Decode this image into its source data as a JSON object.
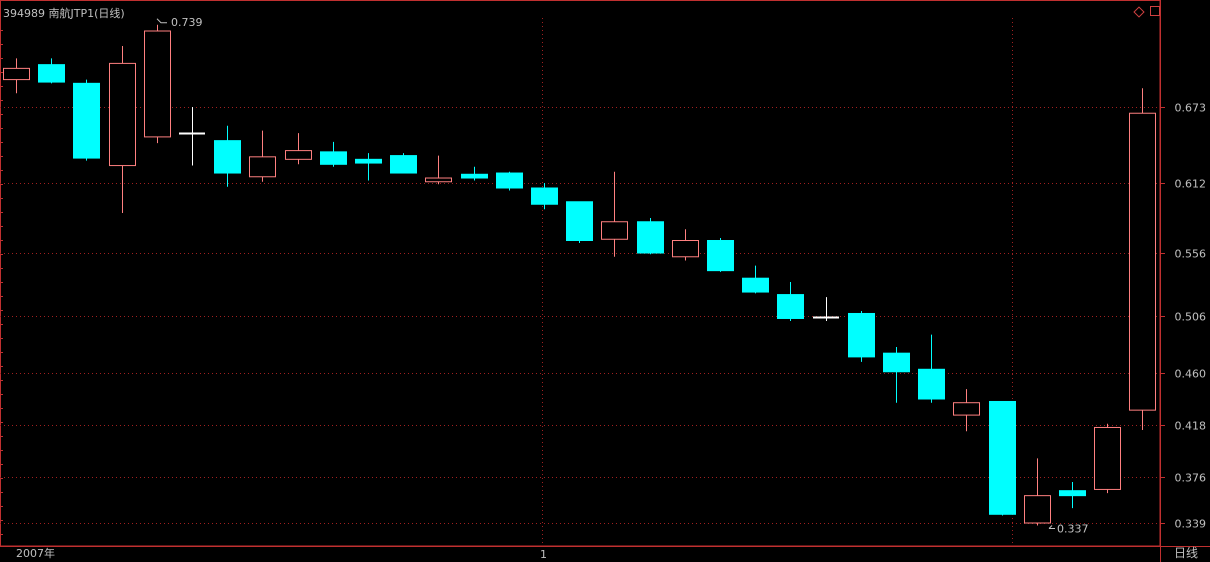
{
  "header": {
    "title": "394989 南航JTP1(日线)"
  },
  "footer": {
    "year_label": "2007年",
    "month_label": "1",
    "period_label": "日线"
  },
  "colors": {
    "background": "#000000",
    "up": "#ff8080",
    "down": "#00ffff",
    "doji": "#ffffff",
    "grid": "#a02020",
    "axis_text": "#c0c0c0",
    "frame": "#c03030"
  },
  "chart_data": {
    "type": "candlestick",
    "y_axis_ticks": [
      "0.673",
      "0.612",
      "0.556",
      "0.506",
      "0.460",
      "0.418",
      "0.376",
      "0.339"
    ],
    "ylim": [
      0.325,
      0.8
    ],
    "grid": true,
    "annotations": {
      "high_label": "0.739",
      "low_label": "0.337"
    },
    "candles": [
      {
        "open": 0.695,
        "high": 0.712,
        "low": 0.684,
        "close": 0.704
      },
      {
        "open": 0.707,
        "high": 0.712,
        "low": 0.692,
        "close": 0.693
      },
      {
        "open": 0.692,
        "high": 0.695,
        "low": 0.63,
        "close": 0.632
      },
      {
        "open": 0.626,
        "high": 0.722,
        "low": 0.588,
        "close": 0.708
      },
      {
        "open": 0.649,
        "high": 0.739,
        "low": 0.644,
        "close": 0.734
      },
      {
        "open": 0.651,
        "high": 0.673,
        "low": 0.626,
        "close": 0.652
      },
      {
        "open": 0.646,
        "high": 0.658,
        "low": 0.609,
        "close": 0.62
      },
      {
        "open": 0.617,
        "high": 0.654,
        "low": 0.613,
        "close": 0.633
      },
      {
        "open": 0.631,
        "high": 0.652,
        "low": 0.627,
        "close": 0.638
      },
      {
        "open": 0.637,
        "high": 0.645,
        "low": 0.625,
        "close": 0.627
      },
      {
        "open": 0.631,
        "high": 0.636,
        "low": 0.614,
        "close": 0.628
      },
      {
        "open": 0.634,
        "high": 0.636,
        "low": 0.62,
        "close": 0.62
      },
      {
        "open": 0.613,
        "high": 0.634,
        "low": 0.611,
        "close": 0.616
      },
      {
        "open": 0.619,
        "high": 0.625,
        "low": 0.614,
        "close": 0.616
      },
      {
        "open": 0.62,
        "high": 0.621,
        "low": 0.606,
        "close": 0.608
      },
      {
        "open": 0.608,
        "high": 0.612,
        "low": 0.591,
        "close": 0.595
      },
      {
        "open": 0.597,
        "high": 0.597,
        "low": 0.564,
        "close": 0.566
      },
      {
        "open": 0.567,
        "high": 0.621,
        "low": 0.553,
        "close": 0.581
      },
      {
        "open": 0.581,
        "high": 0.584,
        "low": 0.555,
        "close": 0.556
      },
      {
        "open": 0.553,
        "high": 0.575,
        "low": 0.55,
        "close": 0.566
      },
      {
        "open": 0.566,
        "high": 0.568,
        "low": 0.541,
        "close": 0.542
      },
      {
        "open": 0.536,
        "high": 0.546,
        "low": 0.524,
        "close": 0.525
      },
      {
        "open": 0.523,
        "high": 0.533,
        "low": 0.502,
        "close": 0.504
      },
      {
        "open": 0.505,
        "high": 0.521,
        "low": 0.502,
        "close": 0.505
      },
      {
        "open": 0.508,
        "high": 0.51,
        "low": 0.469,
        "close": 0.473
      },
      {
        "open": 0.476,
        "high": 0.481,
        "low": 0.436,
        "close": 0.461
      },
      {
        "open": 0.463,
        "high": 0.491,
        "low": 0.436,
        "close": 0.439
      },
      {
        "open": 0.426,
        "high": 0.447,
        "low": 0.413,
        "close": 0.436
      },
      {
        "open": 0.437,
        "high": 0.437,
        "low": 0.345,
        "close": 0.346
      },
      {
        "open": 0.339,
        "high": 0.391,
        "low": 0.337,
        "close": 0.361
      },
      {
        "open": 0.365,
        "high": 0.372,
        "low": 0.351,
        "close": 0.361
      },
      {
        "open": 0.366,
        "high": 0.419,
        "low": 0.363,
        "close": 0.416
      },
      {
        "open": 0.43,
        "high": 0.688,
        "low": 0.414,
        "close": 0.668
      }
    ]
  }
}
